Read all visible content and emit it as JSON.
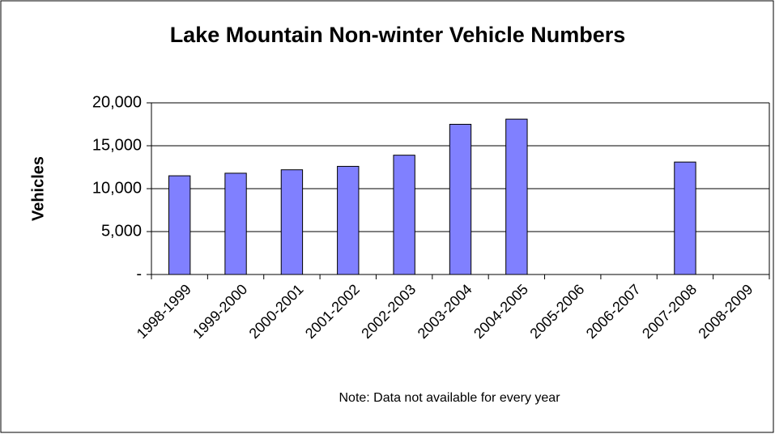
{
  "chart_data": {
    "type": "bar",
    "title": "Lake Mountain Non-winter Vehicle Numbers",
    "y_label": "Vehicles",
    "note": "Note: Data not available for every year",
    "categories": [
      "1998-1999",
      "1999-2000",
      "2000-2001",
      "2001-2002",
      "2002-2003",
      "2003-2004",
      "2004-2005",
      "2005-2006",
      "2006-2007",
      "2007-2008",
      "2008-2009"
    ],
    "values": [
      11500,
      11800,
      12200,
      12600,
      13900,
      17500,
      18100,
      null,
      null,
      13100,
      null
    ],
    "color": "#8080ff",
    "ylim": [
      0,
      20000
    ],
    "yticks": [
      {
        "value": 0,
        "label": "-"
      },
      {
        "value": 5000,
        "label": "5,000"
      },
      {
        "value": 10000,
        "label": "10,000"
      },
      {
        "value": 15000,
        "label": "15,000"
      },
      {
        "value": 20000,
        "label": "20,000"
      }
    ],
    "grid": true
  }
}
